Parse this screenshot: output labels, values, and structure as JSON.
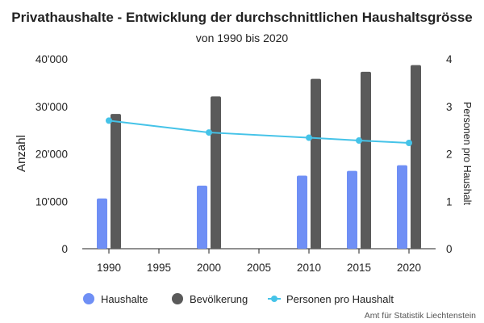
{
  "chart_data": {
    "type": "bar",
    "title": "Privathaushalte - Entwicklung der durchschnittlichen Haushaltsgrösse",
    "subtitle": "von 1990 bis 2020",
    "x_ticks": [
      1990,
      1995,
      2000,
      2005,
      2010,
      2015,
      2020
    ],
    "x": [
      1990,
      2000,
      2010,
      2015,
      2020
    ],
    "series": [
      {
        "name": "Haushalte",
        "type": "bar",
        "axis": "left",
        "color": "#6f8ff5",
        "values": [
          10600,
          13300,
          15400,
          16400,
          17600
        ]
      },
      {
        "name": "Bevölkerung",
        "type": "bar",
        "axis": "left",
        "color": "#5a5a5a",
        "values": [
          28400,
          32100,
          35800,
          37300,
          38700
        ]
      },
      {
        "name": "Personen pro Haushalt",
        "type": "line",
        "axis": "right",
        "color": "#45c3e8",
        "values": [
          2.7,
          2.45,
          2.34,
          2.28,
          2.23
        ]
      }
    ],
    "y_left": {
      "label": "Anzahl",
      "min": 0,
      "max": 40000,
      "ticks": [
        0,
        10000,
        20000,
        30000,
        40000
      ],
      "tick_labels": [
        "0",
        "10'000",
        "20'000",
        "30'000",
        "40'000"
      ]
    },
    "y_right": {
      "label": "Personen pro Haushalt",
      "min": 0,
      "max": 4,
      "ticks": [
        0,
        1,
        2,
        3,
        4
      ],
      "tick_labels": [
        "0",
        "1",
        "2",
        "3",
        "4"
      ]
    },
    "grid": false,
    "legend_position": "bottom",
    "credits": "Amt für Statistik Liechtenstein"
  }
}
